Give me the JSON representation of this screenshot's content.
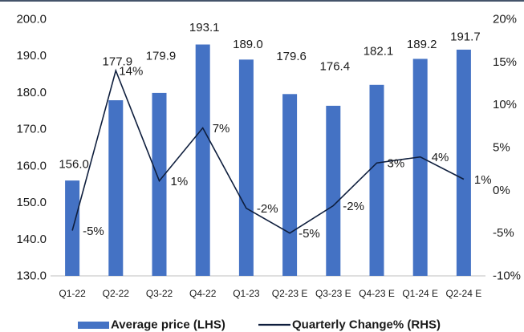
{
  "chart_data": {
    "type": "bar",
    "categories": [
      "Q1-22",
      "Q2-22",
      "Q3-22",
      "Q4-22",
      "Q1-23",
      "Q2-23 E",
      "Q3-23 E",
      "Q4-23 E",
      "Q1-24 E",
      "Q2-24 E"
    ],
    "series": [
      {
        "name": "Average price (LHS)",
        "type": "bar",
        "axis": "left",
        "values": [
          156.0,
          177.9,
          179.9,
          193.1,
          189.0,
          179.6,
          176.4,
          182.1,
          189.2,
          191.7
        ],
        "labels": [
          "156.0",
          "177.9",
          "179.9",
          "193.1",
          "189.0",
          "179.6",
          "176.4",
          "182.1",
          "189.2",
          "191.7"
        ]
      },
      {
        "name": "Quarterly Change% (RHS)",
        "type": "line",
        "axis": "right",
        "values": [
          -4.7,
          14.0,
          1.1,
          7.3,
          -2.1,
          -5.0,
          -1.8,
          3.2,
          3.9,
          1.3
        ],
        "labels": [
          "-5%",
          "14%",
          "1%",
          "7%",
          "-2%",
          "-5%",
          "-2%",
          "3%",
          "4%",
          "1%"
        ]
      }
    ],
    "left_axis": {
      "min": 130,
      "max": 200,
      "tick_values": [
        200,
        190,
        180,
        170,
        160,
        150,
        140,
        130
      ],
      "tick_labels": [
        "200.0",
        "190.0",
        "180.0",
        "170.0",
        "160.0",
        "150.0",
        "140.0",
        "130.0"
      ]
    },
    "right_axis": {
      "min": -10,
      "max": 20,
      "tick_values": [
        20,
        15,
        10,
        5,
        0,
        -5,
        -10
      ],
      "tick_labels": [
        "20%",
        "15%",
        "10%",
        "5%",
        "0%",
        "-5%",
        "-10%"
      ]
    },
    "grid": false,
    "legend_position": "bottom",
    "colors": {
      "bar": "#4472C4",
      "line": "#0E1E3D"
    }
  }
}
